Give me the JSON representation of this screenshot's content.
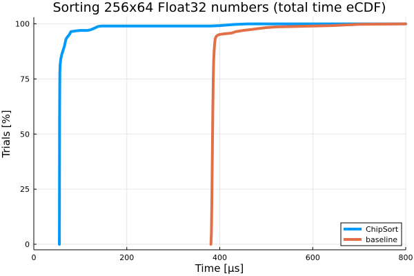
{
  "chart_data": {
    "type": "line",
    "title": "Sorting 256x64 Float32 numbers (total time eCDF)",
    "xlabel": "Time [μs]",
    "ylabel": "Trials [%]",
    "xlim": [
      0,
      800
    ],
    "ylim": [
      -2.5,
      103
    ],
    "xticks": [
      0,
      200,
      400,
      600,
      800
    ],
    "yticks": [
      0,
      25,
      50,
      75,
      100
    ],
    "xtick_labels": [
      "0",
      "200",
      "400",
      "600",
      "800"
    ],
    "ytick_labels": [
      "0",
      "25",
      "50",
      "75",
      "100"
    ],
    "grid": true,
    "legend_position": "bottom-right",
    "series": [
      {
        "name": "ChipSort",
        "color": "#009af9",
        "x": [
          55,
          55.5,
          56,
          56.5,
          57,
          58,
          60,
          63,
          66,
          69,
          72,
          76,
          80,
          90,
          100,
          115,
          122,
          130,
          138,
          145,
          160,
          200,
          300,
          380,
          400,
          430,
          460,
          600,
          800
        ],
        "y": [
          0,
          60,
          78,
          81,
          82,
          84,
          86,
          88,
          90,
          93,
          94,
          95,
          96.5,
          96.8,
          97,
          97,
          97.3,
          98,
          98.8,
          99,
          99,
          99,
          99,
          99,
          99.2,
          99.7,
          100,
          100,
          100
        ]
      },
      {
        "name": "baseline",
        "color": "#e26f46",
        "x": [
          381,
          382,
          383,
          384,
          385,
          386,
          387,
          388,
          389,
          390,
          392,
          395,
          400,
          410,
          425,
          435,
          450,
          470,
          480,
          500,
          520,
          560,
          600,
          640,
          700,
          800
        ],
        "y": [
          0,
          5,
          20,
          40,
          60,
          75,
          84,
          88,
          91,
          93,
          94.2,
          94.8,
          95.2,
          95.5,
          95.8,
          96.5,
          97,
          97.5,
          97.8,
          98.3,
          98.6,
          98.8,
          99,
          99.2,
          99.8,
          100
        ]
      }
    ]
  }
}
